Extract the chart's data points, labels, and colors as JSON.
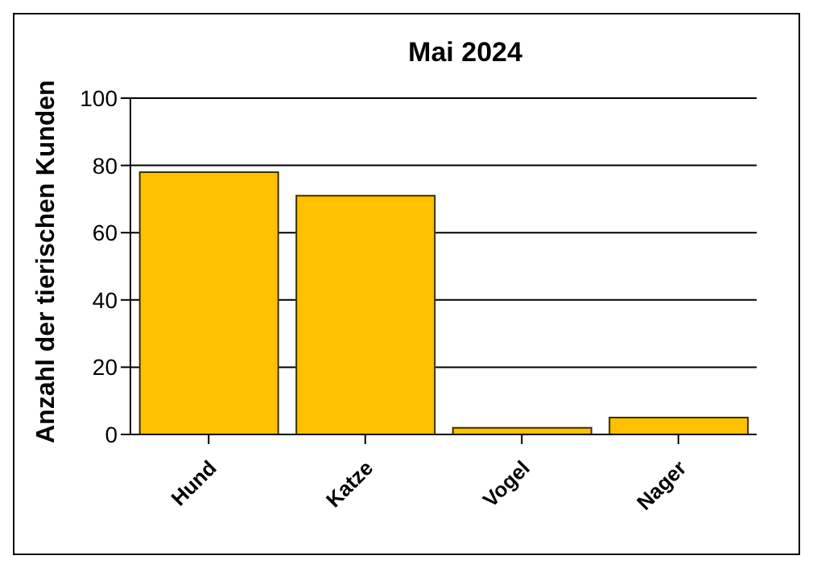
{
  "chart_data": {
    "type": "bar",
    "title": "Mai 2024",
    "ylabel": "Anzahl der tierischen Kunden",
    "categories": [
      "Hund",
      "Katze",
      "Vogel",
      "Nager"
    ],
    "values": [
      78,
      71,
      2,
      5
    ],
    "color": "#ffc000",
    "ylim": [
      0,
      100
    ],
    "yticks": [
      0,
      20,
      40,
      60,
      80,
      100
    ],
    "grid": "y"
  }
}
